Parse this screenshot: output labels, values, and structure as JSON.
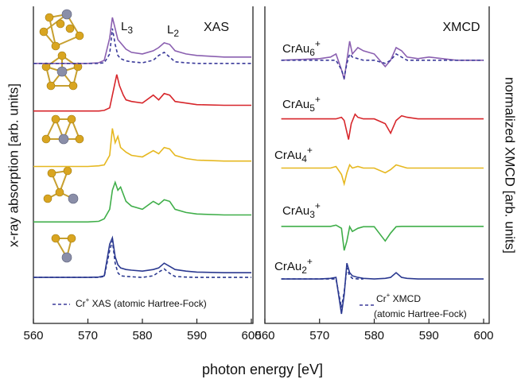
{
  "x_label": "photon energy [eV]",
  "chart_data": [
    {
      "type": "line",
      "title": "XAS",
      "ylabel": "x-ray absorption [arb. units]",
      "xlim": [
        560,
        600
      ],
      "ylim": [
        0,
        10
      ],
      "xticks": [
        560,
        570,
        580,
        590,
        600
      ],
      "edge_labels": [
        {
          "text": "L",
          "sub": "3"
        },
        {
          "text": "L",
          "sub": "2"
        }
      ],
      "legend": {
        "text": "Cr",
        "sup": "+",
        "rest": " XAS (atomic Hartree-Fock)"
      },
      "series": [
        {
          "color": "#8a5fb0",
          "dash": false,
          "x": [
            560,
            570,
            572,
            573,
            574,
            574.5,
            575,
            575.5,
            576,
            577,
            578,
            580,
            582,
            583,
            584,
            585,
            586,
            588,
            590,
            595,
            600
          ],
          "values": [
            8.2,
            8.2,
            8.22,
            8.3,
            9.0,
            9.65,
            9.3,
            8.95,
            8.85,
            8.65,
            8.55,
            8.5,
            8.6,
            8.7,
            8.85,
            8.8,
            8.6,
            8.5,
            8.45,
            8.4,
            8.4
          ]
        },
        {
          "color": "#3b3a9a",
          "dash": true,
          "x": [
            560,
            570,
            572,
            573,
            574,
            574.5,
            575,
            575.5,
            576,
            577,
            578,
            580,
            582,
            583,
            584,
            585,
            586,
            588,
            590,
            595,
            600
          ],
          "values": [
            8.2,
            8.2,
            8.2,
            8.22,
            8.5,
            9.3,
            8.8,
            8.45,
            8.35,
            8.28,
            8.25,
            8.22,
            8.3,
            8.45,
            8.55,
            8.4,
            8.25,
            8.22,
            8.2,
            8.2,
            8.2
          ]
        },
        {
          "color": "#d7262b",
          "dash": false,
          "x": [
            560,
            570,
            572,
            573,
            574,
            574.5,
            575.3,
            575.8,
            576.5,
            577,
            578,
            580,
            582,
            583,
            584,
            585,
            586,
            588,
            590,
            595,
            600
          ],
          "values": [
            6.7,
            6.7,
            6.7,
            6.72,
            6.8,
            7.2,
            7.85,
            7.5,
            7.2,
            7.05,
            7.0,
            6.95,
            7.2,
            7.05,
            7.25,
            7.2,
            7.0,
            6.95,
            6.9,
            6.88,
            6.88
          ]
        },
        {
          "color": "#e6b820",
          "dash": false,
          "x": [
            560,
            570,
            572,
            573,
            574,
            574.5,
            575,
            575.5,
            576,
            577,
            578,
            580,
            582,
            583,
            584,
            585,
            586,
            588,
            590,
            595,
            600
          ],
          "values": [
            4.95,
            4.95,
            4.97,
            5.0,
            5.3,
            6.15,
            5.7,
            5.9,
            5.55,
            5.4,
            5.3,
            5.25,
            5.45,
            5.35,
            5.55,
            5.5,
            5.3,
            5.2,
            5.15,
            5.12,
            5.12
          ]
        },
        {
          "color": "#3fae49",
          "dash": false,
          "x": [
            560,
            570,
            572,
            573,
            574,
            574.5,
            575,
            575.5,
            576,
            577,
            578,
            580,
            582,
            583,
            584,
            585,
            586,
            588,
            590,
            595,
            600
          ],
          "values": [
            3.2,
            3.2,
            3.22,
            3.3,
            3.6,
            4.2,
            4.45,
            4.2,
            4.3,
            3.85,
            3.7,
            3.6,
            3.85,
            3.75,
            3.9,
            3.85,
            3.6,
            3.5,
            3.45,
            3.42,
            3.42
          ]
        },
        {
          "color": "#2b3990",
          "dash": false,
          "x": [
            560,
            570,
            572,
            573,
            574,
            574.5,
            575,
            575.5,
            576,
            577,
            578,
            580,
            582,
            583,
            584,
            585,
            586,
            588,
            590,
            595,
            600
          ],
          "values": [
            1.45,
            1.45,
            1.46,
            1.5,
            2.5,
            2.7,
            2.1,
            1.85,
            1.75,
            1.7,
            1.68,
            1.65,
            1.7,
            1.75,
            1.9,
            1.8,
            1.7,
            1.65,
            1.62,
            1.6,
            1.6
          ]
        },
        {
          "color": "#2b3990",
          "dash": true,
          "x": [
            560,
            570,
            572,
            573,
            574,
            574.5,
            575,
            575.5,
            576,
            577,
            578,
            580,
            582,
            583,
            584,
            585,
            586,
            588,
            590,
            595,
            600
          ],
          "values": [
            1.45,
            1.45,
            1.45,
            1.48,
            2.3,
            2.6,
            1.9,
            1.6,
            1.5,
            1.48,
            1.47,
            1.45,
            1.5,
            1.62,
            1.72,
            1.58,
            1.48,
            1.46,
            1.45,
            1.45,
            1.45
          ]
        }
      ]
    },
    {
      "type": "line",
      "title": "XMCD",
      "ylabel": "normalized XMCD [arb. units]",
      "xlim": [
        560,
        600
      ],
      "ylim": [
        0,
        10
      ],
      "xticks": [
        560,
        570,
        580,
        590,
        600
      ],
      "legend": {
        "text": "Cr",
        "sup": "+",
        "rest": " XMCD",
        "line2": "(atomic Hartree-Fock)"
      },
      "series": [
        {
          "label": {
            "text": "CrAu",
            "sub": "6",
            "sup": "+"
          },
          "color": "#8a5fb0",
          "dash": false,
          "x": [
            563,
            570,
            572,
            573,
            574,
            574.5,
            575,
            575.5,
            576,
            577,
            578,
            580,
            582,
            583,
            584,
            585,
            586,
            588,
            590,
            595,
            600
          ],
          "values": [
            8.3,
            8.35,
            8.4,
            8.5,
            8.0,
            7.7,
            8.3,
            8.9,
            8.5,
            8.7,
            8.6,
            8.5,
            8.1,
            8.3,
            8.7,
            8.6,
            8.4,
            8.35,
            8.4,
            8.3,
            8.3
          ]
        },
        {
          "color": "#3b3a9a",
          "dash": true,
          "x": [
            563,
            570,
            572,
            573,
            574,
            574.5,
            575,
            575.5,
            576,
            577,
            578,
            580,
            582,
            583,
            584,
            585,
            586,
            588,
            590,
            595,
            600
          ],
          "values": [
            8.3,
            8.3,
            8.3,
            8.3,
            8.0,
            7.75,
            8.2,
            8.5,
            8.4,
            8.35,
            8.3,
            8.3,
            8.2,
            8.3,
            8.5,
            8.4,
            8.3,
            8.3,
            8.3,
            8.3,
            8.3
          ]
        },
        {
          "label": {
            "text": "CrAu",
            "sub": "5",
            "sup": "+"
          },
          "color": "#d7262b",
          "dash": false,
          "x": [
            563,
            570,
            572,
            573,
            574,
            574.5,
            575.3,
            575.8,
            576.5,
            577,
            578,
            580,
            582,
            583,
            584,
            585,
            586,
            588,
            590,
            595,
            600
          ],
          "values": [
            6.45,
            6.45,
            6.45,
            6.45,
            6.5,
            6.4,
            5.8,
            6.3,
            6.6,
            6.5,
            6.45,
            6.45,
            6.3,
            6.0,
            6.4,
            6.55,
            6.5,
            6.45,
            6.45,
            6.45,
            6.45
          ]
        },
        {
          "label": {
            "text": "CrAu",
            "sub": "4",
            "sup": "+"
          },
          "color": "#e6b820",
          "dash": false,
          "x": [
            563,
            570,
            572,
            573,
            574,
            574.5,
            575,
            575.5,
            576,
            577,
            578,
            580,
            582,
            583,
            584,
            585,
            586,
            588,
            590,
            595,
            600
          ],
          "values": [
            4.9,
            4.9,
            4.9,
            4.95,
            4.7,
            4.4,
            4.75,
            5.0,
            4.9,
            4.95,
            4.9,
            4.9,
            4.75,
            4.85,
            5.0,
            4.95,
            4.9,
            4.9,
            4.9,
            4.9,
            4.9
          ]
        },
        {
          "label": {
            "text": "CrAu",
            "sub": "3",
            "sup": "+"
          },
          "color": "#3fae49",
          "dash": false,
          "x": [
            563,
            570,
            572,
            573,
            574,
            574.5,
            575,
            575.5,
            576,
            577,
            578,
            580,
            582,
            583,
            584,
            585,
            586,
            588,
            590,
            595,
            600
          ],
          "values": [
            3.06,
            3.06,
            3.06,
            3.1,
            3.0,
            2.3,
            2.6,
            3.05,
            2.9,
            3.0,
            3.05,
            3.05,
            2.6,
            2.85,
            3.05,
            3.06,
            3.06,
            3.06,
            3.06,
            3.06,
            3.06
          ]
        },
        {
          "label": {
            "text": "CrAu",
            "sub": "2",
            "sup": "+"
          },
          "color": "#2b3990",
          "dash": false,
          "x": [
            563,
            570,
            572,
            573,
            574,
            574.5,
            575,
            575.5,
            576,
            577,
            578,
            580,
            582,
            583,
            584,
            585,
            586,
            588,
            590,
            595,
            600
          ],
          "values": [
            1.4,
            1.4,
            1.42,
            1.45,
            0.3,
            0.9,
            1.9,
            1.6,
            1.5,
            1.45,
            1.42,
            1.4,
            1.42,
            1.45,
            1.6,
            1.45,
            1.42,
            1.4,
            1.4,
            1.4,
            1.4
          ]
        },
        {
          "color": "#2b3990",
          "dash": true,
          "x": [
            563,
            570,
            572,
            573,
            574,
            574.5,
            575,
            575.5,
            576,
            577,
            578
          ],
          "values": [
            1.4,
            1.4,
            1.4,
            1.4,
            0.5,
            1.0,
            1.75,
            1.5,
            1.42,
            1.4,
            1.4
          ]
        }
      ]
    }
  ]
}
